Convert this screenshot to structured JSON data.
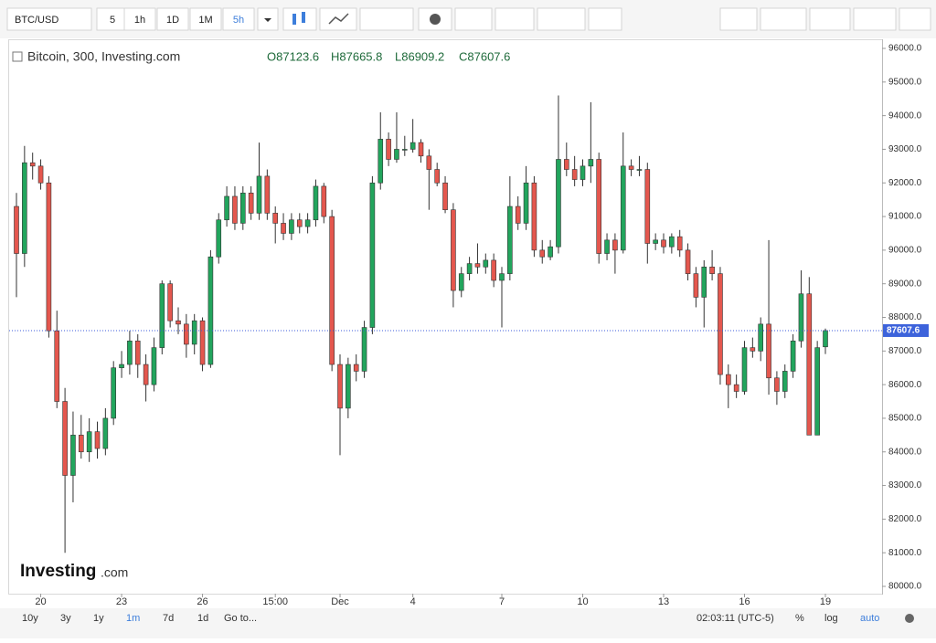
{
  "toolbar": {
    "symbol": "BTC/USD",
    "intervals": [
      "5",
      "1h",
      "1D",
      "1M",
      "5h"
    ]
  },
  "legend": {
    "name": "Bitcoin, 300, Investing.com",
    "open": "O87123.6",
    "high": "H87665.8",
    "low": "L86909.2",
    "close": "C87607.6"
  },
  "logo": {
    "main": "Investing",
    "suffix": ".com"
  },
  "bottom_bar": {
    "ranges": [
      "10y",
      "3y",
      "1y",
      "1m",
      "7d",
      "1d"
    ],
    "goto": "Go to...",
    "time": "02:03:11 (UTC-5)",
    "percent": "%",
    "log": "log",
    "auto": "auto"
  },
  "chart_data": {
    "type": "candlestick",
    "up_color": "#22a55d",
    "down_color": "#e4574e",
    "ylim": [
      80000,
      96000
    ],
    "yticks": [
      {
        "value": 80000,
        "label": "80000.0"
      },
      {
        "value": 81000,
        "label": "81000.0"
      },
      {
        "value": 82000,
        "label": "82000.0"
      },
      {
        "value": 83000,
        "label": "83000.0"
      },
      {
        "value": 84000,
        "label": "84000.0"
      },
      {
        "value": 85000,
        "label": "85000.0"
      },
      {
        "value": 86000,
        "label": "86000.0"
      },
      {
        "value": 87000,
        "label": "87000.0"
      },
      {
        "value": 88000,
        "label": "88000.0"
      },
      {
        "value": 89000,
        "label": "89000.0"
      },
      {
        "value": 90000,
        "label": "90000.0"
      },
      {
        "value": 91000,
        "label": "91000.0"
      },
      {
        "value": 92000,
        "label": "92000.0"
      },
      {
        "value": 93000,
        "label": "93000.0"
      },
      {
        "value": 94000,
        "label": "94000.0"
      },
      {
        "value": 95000,
        "label": "95000.0"
      },
      {
        "value": 96000,
        "label": "96000.0"
      }
    ],
    "last_price": {
      "value": 87607.6,
      "label": "87607.6"
    },
    "categories": [
      null,
      null,
      null,
      "20",
      null,
      null,
      null,
      null,
      null,
      null,
      null,
      null,
      null,
      "23",
      null,
      null,
      null,
      null,
      null,
      null,
      null,
      null,
      null,
      "26",
      null,
      null,
      null,
      null,
      null,
      null,
      null,
      null,
      "15:00",
      null,
      null,
      null,
      null,
      null,
      null,
      null,
      "Dec",
      null,
      null,
      null,
      null,
      null,
      null,
      null,
      null,
      "4",
      null,
      null,
      null,
      null,
      null,
      null,
      null,
      null,
      null,
      null,
      "7",
      null,
      null,
      null,
      null,
      null,
      null,
      null,
      null,
      null,
      "10",
      null,
      null,
      null,
      null,
      null,
      null,
      null,
      null,
      null,
      "13",
      null,
      null,
      null,
      null,
      null,
      null,
      null,
      null,
      null,
      "16",
      null,
      null,
      null,
      null,
      null,
      null,
      null,
      null,
      null,
      "19"
    ],
    "ohlc": [
      [
        91300,
        91700,
        88600,
        89900
      ],
      [
        89900,
        93100,
        89500,
        92600
      ],
      [
        92600,
        92900,
        92100,
        92500
      ],
      [
        92500,
        92700,
        91800,
        92000
      ],
      [
        92000,
        92200,
        87400,
        87600
      ],
      [
        87600,
        88200,
        85300,
        85500
      ],
      [
        85500,
        85900,
        81000,
        83300
      ],
      [
        83300,
        85200,
        82500,
        84500
      ],
      [
        84500,
        85100,
        83800,
        84000
      ],
      [
        84000,
        85000,
        83700,
        84600
      ],
      [
        84600,
        84900,
        83800,
        84100
      ],
      [
        84100,
        85300,
        83900,
        85000
      ],
      [
        85000,
        86700,
        84800,
        86500
      ],
      [
        86500,
        87000,
        86200,
        86600
      ],
      [
        86600,
        87600,
        86300,
        87300
      ],
      [
        87300,
        87500,
        86200,
        86600
      ],
      [
        86600,
        86900,
        85500,
        86000
      ],
      [
        86000,
        87400,
        85800,
        87100
      ],
      [
        87100,
        89100,
        86900,
        89000
      ],
      [
        89000,
        89100,
        87700,
        87900
      ],
      [
        87900,
        88300,
        87500,
        87800
      ],
      [
        87800,
        88100,
        86800,
        87200
      ],
      [
        87200,
        88100,
        86900,
        87900
      ],
      [
        87900,
        88000,
        86400,
        86600
      ],
      [
        86600,
        90000,
        86500,
        89800
      ],
      [
        89800,
        91100,
        89600,
        90900
      ],
      [
        90900,
        91900,
        90700,
        91600
      ],
      [
        91600,
        91900,
        90600,
        90800
      ],
      [
        90800,
        91900,
        90600,
        91700
      ],
      [
        91700,
        91900,
        90900,
        91100
      ],
      [
        91100,
        93200,
        90900,
        92200
      ],
      [
        92200,
        92400,
        90900,
        91100
      ],
      [
        91100,
        91300,
        90200,
        90800
      ],
      [
        90800,
        91100,
        90300,
        90500
      ],
      [
        90500,
        91100,
        90300,
        90900
      ],
      [
        90900,
        91100,
        90500,
        90700
      ],
      [
        90700,
        91100,
        90500,
        90900
      ],
      [
        90900,
        92100,
        90700,
        91900
      ],
      [
        91900,
        92000,
        90800,
        91000
      ],
      [
        91000,
        91200,
        86400,
        86600
      ],
      [
        86600,
        86900,
        83900,
        85300
      ],
      [
        85300,
        86800,
        85000,
        86600
      ],
      [
        86600,
        86900,
        86100,
        86400
      ],
      [
        86400,
        87900,
        86200,
        87700
      ],
      [
        87700,
        92200,
        87500,
        92000
      ],
      [
        92000,
        94100,
        91800,
        93300
      ],
      [
        93300,
        93500,
        92500,
        92700
      ],
      [
        92700,
        94100,
        92600,
        93000
      ],
      [
        93000,
        93400,
        92800,
        93000
      ],
      [
        93000,
        93900,
        92900,
        93200
      ],
      [
        93200,
        93300,
        92600,
        92800
      ],
      [
        92800,
        93000,
        91200,
        92400
      ],
      [
        92400,
        92600,
        91900,
        92000
      ],
      [
        92000,
        92200,
        91100,
        91200
      ],
      [
        91200,
        91400,
        88300,
        88800
      ],
      [
        88800,
        89500,
        88600,
        89300
      ],
      [
        89300,
        89800,
        89100,
        89600
      ],
      [
        89600,
        90200,
        89300,
        89500
      ],
      [
        89500,
        89900,
        89300,
        89700
      ],
      [
        89700,
        89900,
        88900,
        89100
      ],
      [
        89100,
        89500,
        87700,
        89300
      ],
      [
        89300,
        92200,
        89100,
        91300
      ],
      [
        91300,
        91600,
        90600,
        90800
      ],
      [
        90800,
        92500,
        90600,
        92000
      ],
      [
        92000,
        92200,
        89800,
        90000
      ],
      [
        90000,
        90300,
        89600,
        89800
      ],
      [
        89800,
        90300,
        89700,
        90100
      ],
      [
        90100,
        94600,
        89900,
        92700
      ],
      [
        92700,
        93200,
        92200,
        92400
      ],
      [
        92400,
        92800,
        91900,
        92100
      ],
      [
        92100,
        92700,
        91900,
        92500
      ],
      [
        92500,
        94400,
        92000,
        92700
      ],
      [
        92700,
        92900,
        89600,
        89900
      ],
      [
        89900,
        90500,
        89700,
        90300
      ],
      [
        90300,
        90500,
        89300,
        90000
      ],
      [
        90000,
        93500,
        89900,
        92500
      ],
      [
        92500,
        92700,
        92200,
        92400
      ],
      [
        92400,
        92800,
        92200,
        92400
      ],
      [
        92400,
        92600,
        89600,
        90200
      ],
      [
        90200,
        90500,
        90000,
        90300
      ],
      [
        90300,
        90500,
        89900,
        90100
      ],
      [
        90100,
        90500,
        89900,
        90400
      ],
      [
        90400,
        90600,
        89800,
        90000
      ],
      [
        90000,
        90200,
        89100,
        89300
      ],
      [
        89300,
        89500,
        88300,
        88600
      ],
      [
        88600,
        89700,
        87700,
        89500
      ],
      [
        89500,
        90000,
        89100,
        89300
      ],
      [
        89300,
        89500,
        86000,
        86300
      ],
      [
        86300,
        86600,
        85300,
        86000
      ],
      [
        86000,
        86300,
        85600,
        85800
      ],
      [
        85800,
        87300,
        85700,
        87100
      ],
      [
        87100,
        87400,
        86800,
        87000
      ],
      [
        87000,
        88000,
        86700,
        87800
      ],
      [
        87800,
        90300,
        85700,
        86200
      ],
      [
        86200,
        86400,
        85400,
        85800
      ],
      [
        85800,
        86600,
        85600,
        86400
      ],
      [
        86400,
        87500,
        86200,
        87300
      ],
      [
        87300,
        89400,
        87100,
        88700
      ],
      [
        88700,
        89200,
        84500,
        84500
      ],
      [
        84500,
        87300,
        84500,
        87100
      ],
      [
        87123.6,
        87665.8,
        86909.2,
        87607.6
      ]
    ]
  }
}
